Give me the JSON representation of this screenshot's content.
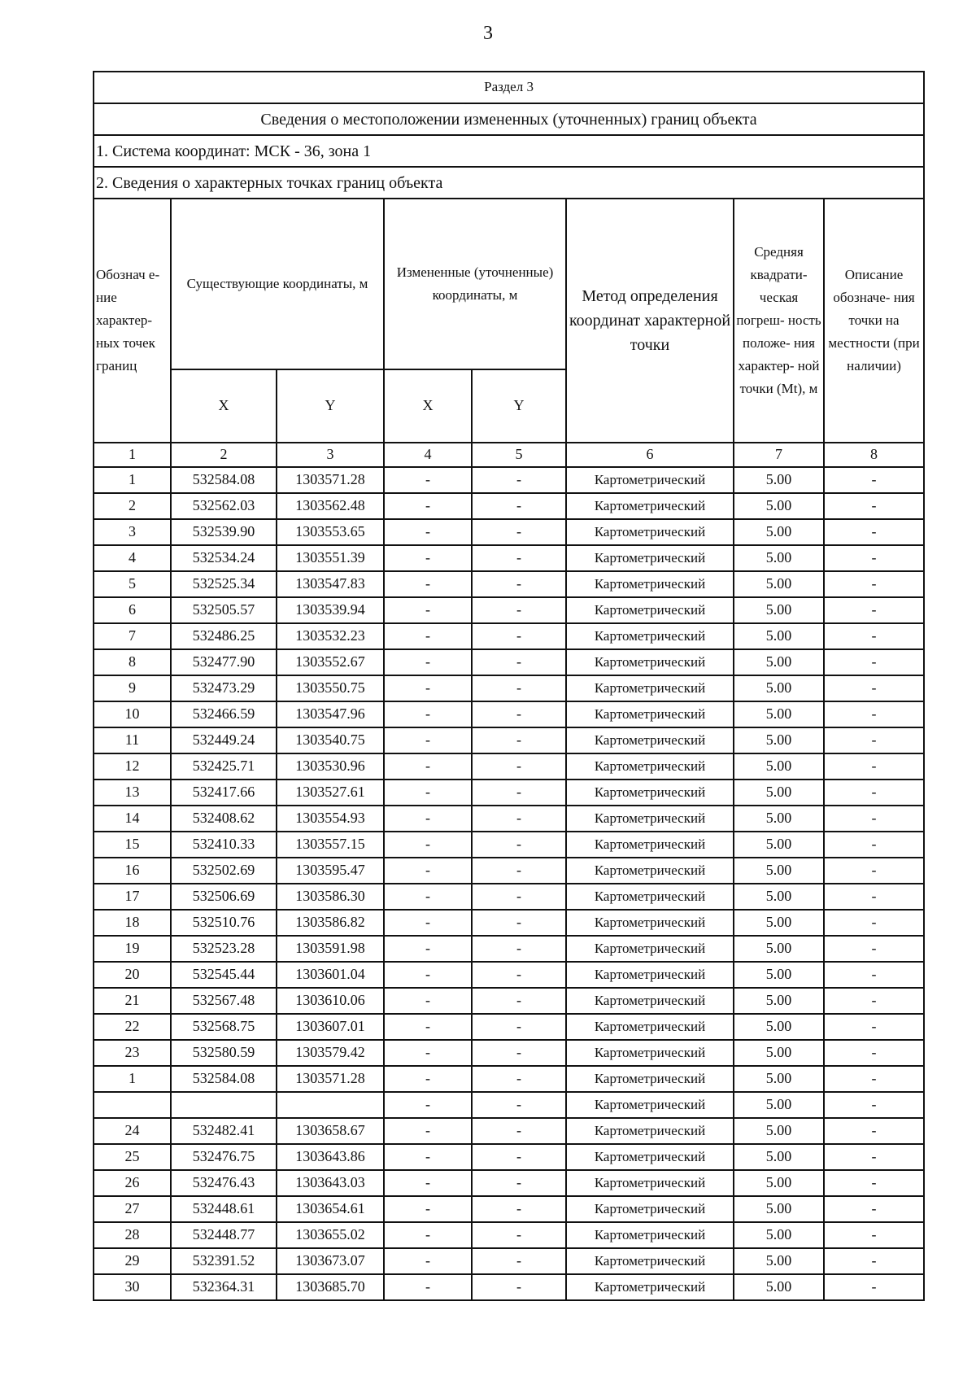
{
  "page_number": "3",
  "section": "Раздел 3",
  "title": "Сведения о местоположении измененных (уточненных) границ объекта",
  "coord_system": "1. Система координат: МСК - 36, зона 1",
  "points_heading": "2. Сведения о характерных точках границ объекта",
  "headers": {
    "point": "Обознач е-ние характер- ных точек границ",
    "existing": "Существующие координаты, м",
    "changed": "Измененные (уточненные) координаты, м",
    "method": "Метод определения координат характерной точки",
    "error": "Средняя квадрати- ческая погреш- ность положе- ния характер- ной точки (Mt), м",
    "description": "Описание обозначе- ния точки на местности (при наличии)",
    "x": "X",
    "y": "Y",
    "x2": "X",
    "y2": "Y"
  },
  "column_numbers": [
    "1",
    "2",
    "3",
    "4",
    "5",
    "6",
    "7",
    "8"
  ],
  "rows": [
    [
      "1",
      "532584.08",
      "1303571.28",
      "-",
      "-",
      "Картометрический",
      "5.00",
      "-"
    ],
    [
      "2",
      "532562.03",
      "1303562.48",
      "-",
      "-",
      "Картометрический",
      "5.00",
      "-"
    ],
    [
      "3",
      "532539.90",
      "1303553.65",
      "-",
      "-",
      "Картометрический",
      "5.00",
      "-"
    ],
    [
      "4",
      "532534.24",
      "1303551.39",
      "-",
      "-",
      "Картометрический",
      "5.00",
      "-"
    ],
    [
      "5",
      "532525.34",
      "1303547.83",
      "-",
      "-",
      "Картометрический",
      "5.00",
      "-"
    ],
    [
      "6",
      "532505.57",
      "1303539.94",
      "-",
      "-",
      "Картометрический",
      "5.00",
      "-"
    ],
    [
      "7",
      "532486.25",
      "1303532.23",
      "-",
      "-",
      "Картометрический",
      "5.00",
      "-"
    ],
    [
      "8",
      "532477.90",
      "1303552.67",
      "-",
      "-",
      "Картометрический",
      "5.00",
      "-"
    ],
    [
      "9",
      "532473.29",
      "1303550.75",
      "-",
      "-",
      "Картометрический",
      "5.00",
      "-"
    ],
    [
      "10",
      "532466.59",
      "1303547.96",
      "-",
      "-",
      "Картометрический",
      "5.00",
      "-"
    ],
    [
      "11",
      "532449.24",
      "1303540.75",
      "-",
      "-",
      "Картометрический",
      "5.00",
      "-"
    ],
    [
      "12",
      "532425.71",
      "1303530.96",
      "-",
      "-",
      "Картометрический",
      "5.00",
      "-"
    ],
    [
      "13",
      "532417.66",
      "1303527.61",
      "-",
      "-",
      "Картометрический",
      "5.00",
      "-"
    ],
    [
      "14",
      "532408.62",
      "1303554.93",
      "-",
      "-",
      "Картометрический",
      "5.00",
      "-"
    ],
    [
      "15",
      "532410.33",
      "1303557.15",
      "-",
      "-",
      "Картометрический",
      "5.00",
      "-"
    ],
    [
      "16",
      "532502.69",
      "1303595.47",
      "-",
      "-",
      "Картометрический",
      "5.00",
      "-"
    ],
    [
      "17",
      "532506.69",
      "1303586.30",
      "-",
      "-",
      "Картометрический",
      "5.00",
      "-"
    ],
    [
      "18",
      "532510.76",
      "1303586.82",
      "-",
      "-",
      "Картометрический",
      "5.00",
      "-"
    ],
    [
      "19",
      "532523.28",
      "1303591.98",
      "-",
      "-",
      "Картометрический",
      "5.00",
      "-"
    ],
    [
      "20",
      "532545.44",
      "1303601.04",
      "-",
      "-",
      "Картометрический",
      "5.00",
      "-"
    ],
    [
      "21",
      "532567.48",
      "1303610.06",
      "-",
      "-",
      "Картометрический",
      "5.00",
      "-"
    ],
    [
      "22",
      "532568.75",
      "1303607.01",
      "-",
      "-",
      "Картометрический",
      "5.00",
      "-"
    ],
    [
      "23",
      "532580.59",
      "1303579.42",
      "-",
      "-",
      "Картометрический",
      "5.00",
      "-"
    ],
    [
      "1",
      "532584.08",
      "1303571.28",
      "-",
      "-",
      "Картометрический",
      "5.00",
      "-"
    ],
    [
      "",
      "",
      "",
      "-",
      "-",
      "Картометрический",
      "5.00",
      "-"
    ],
    [
      "24",
      "532482.41",
      "1303658.67",
      "-",
      "-",
      "Картометрический",
      "5.00",
      "-"
    ],
    [
      "25",
      "532476.75",
      "1303643.86",
      "-",
      "-",
      "Картометрический",
      "5.00",
      "-"
    ],
    [
      "26",
      "532476.43",
      "1303643.03",
      "-",
      "-",
      "Картометрический",
      "5.00",
      "-"
    ],
    [
      "27",
      "532448.61",
      "1303654.61",
      "-",
      "-",
      "Картометрический",
      "5.00",
      "-"
    ],
    [
      "28",
      "532448.77",
      "1303655.02",
      "-",
      "-",
      "Картометрический",
      "5.00",
      "-"
    ],
    [
      "29",
      "532391.52",
      "1303673.07",
      "-",
      "-",
      "Картометрический",
      "5.00",
      "-"
    ],
    [
      "30",
      "532364.31",
      "1303685.70",
      "-",
      "-",
      "Картометрический",
      "5.00",
      "-"
    ]
  ]
}
